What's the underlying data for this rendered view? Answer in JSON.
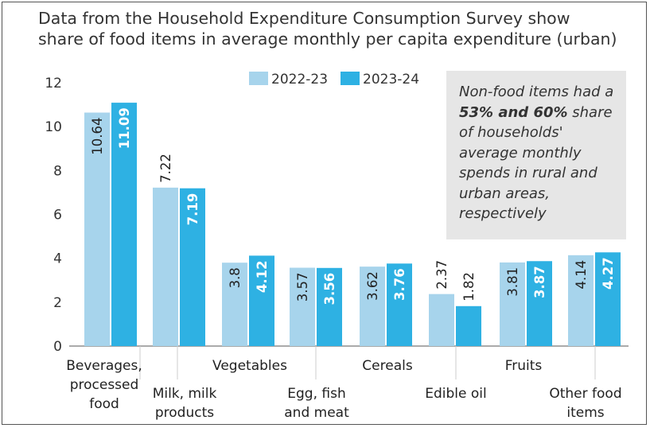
{
  "header": {
    "title": "Data from the Household Expenditure Consumption Survey show\nshare of food items in average monthly per capita expenditure (urban)"
  },
  "note": {
    "part1": "Non-food items had a ",
    "bold": "53% and 60%",
    "part2": " share of households' average monthly spends in rural and urban areas, respectively"
  },
  "colors": {
    "series_2022": "#a7d4ec",
    "series_2023": "#2eb1e3",
    "axis": "#555555",
    "value_label_on_light": "#222222",
    "value_label_on_dark": "#ffffff"
  },
  "chart_data": {
    "type": "bar",
    "categories": [
      "Beverages, processed food",
      "Milk, milk products",
      "Vegetables",
      "Egg, fish and meat",
      "Cereals",
      "Edible oil",
      "Fruits",
      "Other food items"
    ],
    "category_labels": [
      [
        "Beverages,",
        "processed",
        "food"
      ],
      [
        "Milk, milk",
        "products"
      ],
      [
        "Vegetables"
      ],
      [
        "Egg, fish",
        "and meat"
      ],
      [
        "Cereals"
      ],
      [
        "Edible oil"
      ],
      [
        "Fruits"
      ],
      [
        "Other food",
        "items"
      ]
    ],
    "series": [
      {
        "name": "2022-23",
        "values": [
          10.64,
          7.22,
          3.8,
          3.57,
          3.62,
          2.37,
          3.81,
          4.14
        ],
        "labels": [
          "10.64",
          "7.22",
          "3.8",
          "3.57",
          "3.62",
          "2.37",
          "3.81",
          "4.14"
        ]
      },
      {
        "name": "2023-24",
        "values": [
          11.09,
          7.19,
          4.12,
          3.56,
          3.76,
          1.82,
          3.87,
          4.27
        ],
        "labels": [
          "11.09",
          "7.19",
          "4.12",
          "3.56",
          "3.76",
          "1.82",
          "3.87",
          "4.27"
        ]
      }
    ],
    "yticks": [
      "0",
      "2",
      "4",
      "6",
      "8",
      "10",
      "12"
    ],
    "ylim": [
      0,
      12
    ],
    "legend_position": "top-center",
    "grid": false
  }
}
